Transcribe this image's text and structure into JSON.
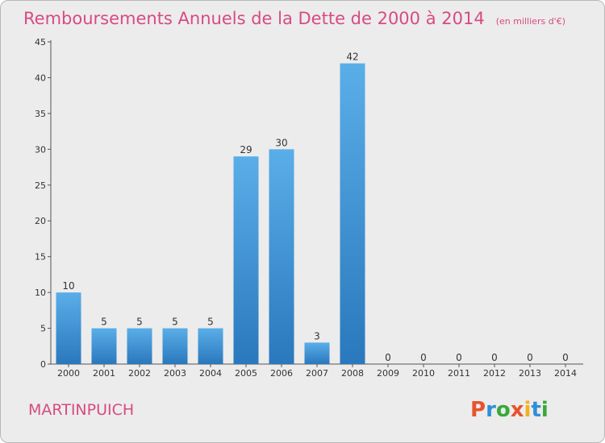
{
  "header": {
    "title": "Remboursements Annuels de la Dette de 2000 à 2014",
    "unit": "(en milliers d'€)"
  },
  "footer": {
    "commune": "MARTINPUICH",
    "logo_text": "Proxiti"
  },
  "colors": {
    "title": "#d84a82",
    "bar_top": "#5aaee8",
    "bar_bottom": "#2a78bd",
    "background": "#ececec",
    "logo_letters": [
      "#e8532b",
      "#2f8fd8",
      "#3aa83a",
      "#e8532b",
      "#f2b01e",
      "#2f8fd8",
      "#3aa83a"
    ]
  },
  "chart_data": {
    "type": "bar",
    "title": "Remboursements Annuels de la Dette de 2000 à 2014",
    "subtitle": "(en milliers d'€)",
    "xlabel": "",
    "ylabel": "",
    "categories": [
      "2000",
      "2001",
      "2002",
      "2003",
      "2004",
      "2005",
      "2006",
      "2007",
      "2008",
      "2009",
      "2010",
      "2011",
      "2012",
      "2013",
      "2014"
    ],
    "values": [
      10,
      5,
      5,
      5,
      5,
      29,
      30,
      3,
      42,
      0,
      0,
      0,
      0,
      0,
      0
    ],
    "ylim": [
      0,
      45
    ],
    "yticks": [
      0,
      5,
      10,
      15,
      20,
      25,
      30,
      35,
      40,
      45
    ],
    "grid": false,
    "legend": "none"
  }
}
